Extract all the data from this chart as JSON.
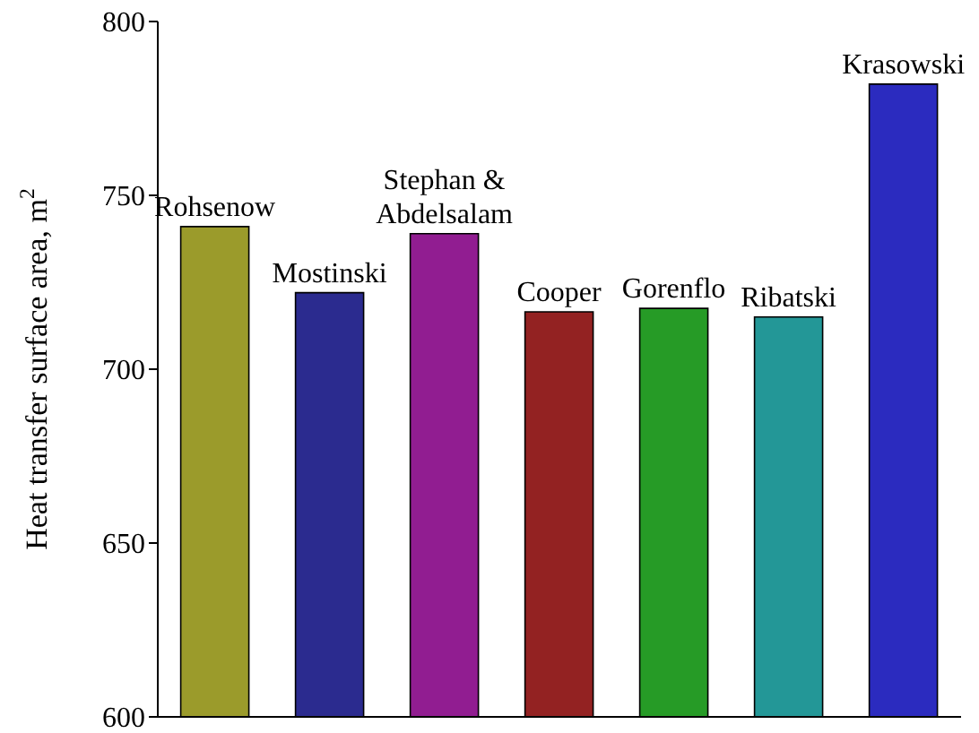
{
  "chart_data": {
    "type": "bar",
    "ylabel": "Heat transfer surface area, m$^{2}$",
    "categories": [
      "Rohsenow",
      "Mostinski",
      "Stephan & Abdelsalam",
      "Cooper",
      "Gorenflo",
      "Ribatski",
      "Krasowski"
    ],
    "values": [
      741,
      722,
      739,
      716.5,
      717.5,
      715,
      782
    ],
    "colors": [
      "#9b9b2b",
      "#2b2b8f",
      "#911d91",
      "#932222",
      "#269b26",
      "#239797",
      "#2b2bbf"
    ],
    "ylim": [
      600,
      800
    ],
    "yticks": [
      600,
      650,
      700,
      750,
      800
    ],
    "tick_labels": "y",
    "grid": false,
    "legend": false
  }
}
